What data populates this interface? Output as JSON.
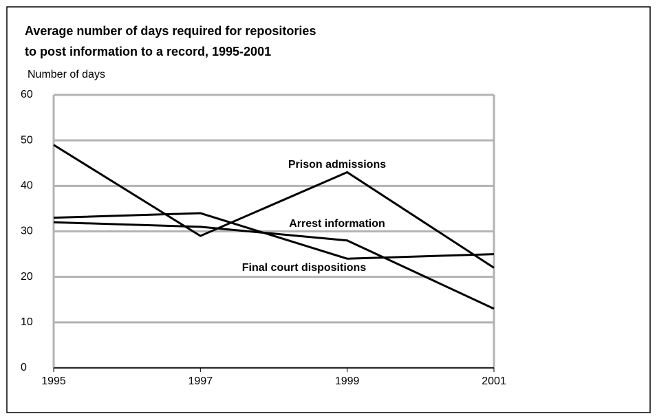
{
  "chart_data": {
    "type": "line",
    "title": [
      "Average number of days required for repositories",
      "to post information to a record, 1995-2001"
    ],
    "y_label": "Number of days",
    "x": [
      1995,
      1997,
      1999,
      2001
    ],
    "series": [
      {
        "name": "Prison admissions",
        "color": "#000000",
        "values": [
          49,
          29,
          43,
          22
        ]
      },
      {
        "name": "Arrest information",
        "color": "#000000",
        "values": [
          32,
          31,
          28,
          13
        ]
      },
      {
        "name": "Final court dispositions",
        "color": "#000000",
        "values": [
          33,
          34,
          24,
          25
        ]
      }
    ],
    "xlim": [
      1995,
      2001
    ],
    "xticks": [
      1995,
      1997,
      1999,
      2001
    ],
    "ylim": [
      0,
      60
    ],
    "yticks": [
      0,
      10,
      20,
      30,
      40,
      50,
      60
    ],
    "grid": true,
    "grid_color": "#b3b3b3"
  }
}
